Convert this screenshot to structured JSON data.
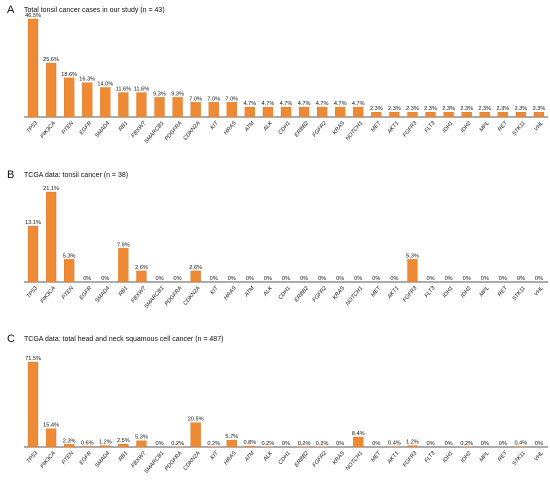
{
  "style": {
    "bar_color": "#ee8a34",
    "text_color": "#111111",
    "background": "#ffffff"
  },
  "chart_data": [
    {
      "type": "bar",
      "panel": "A",
      "title": "Total tonsil cancer cases in our study (n = 43)",
      "categories": [
        "TP53",
        "PIK3CA",
        "PTEN",
        "EGFR",
        "SMAD4",
        "RB1",
        "FBXW7",
        "SMARCB1",
        "PDGFRA",
        "CDKN2A",
        "KIT",
        "HRAS",
        "ATM",
        "ALK",
        "CDH1",
        "ERBB2",
        "FGFR2",
        "KRAS",
        "NOTCH1",
        "MET",
        "AKT1",
        "FGFR3",
        "FLT3",
        "IDH1",
        "IDH2",
        "MPL",
        "RET",
        "STK11",
        "VHL"
      ],
      "values": [
        46.5,
        25.6,
        18.6,
        16.3,
        14.0,
        11.6,
        11.6,
        9.3,
        9.3,
        7.0,
        7.0,
        7.0,
        4.7,
        4.7,
        4.7,
        4.7,
        4.7,
        4.7,
        4.7,
        2.3,
        2.3,
        2.3,
        2.3,
        2.3,
        2.3,
        2.3,
        2.3,
        2.3,
        2.3
      ],
      "value_labels": [
        "46.5%",
        "25.6%",
        "18.6%",
        "16.3%",
        "14.0%",
        "11.6%",
        "11.6%",
        "9.3%",
        "9.3%",
        "7.0%",
        "7.0%",
        "7.0%",
        "4.7%",
        "4.7%",
        "4.7%",
        "4.7%",
        "4.7%",
        "4.7%",
        "4.7%",
        "2.3%",
        "2.3%",
        "2.3%",
        "2.3%",
        "2.3%",
        "2.3%",
        "2.3%",
        "2.3%",
        "2.3%",
        "2.3%"
      ],
      "ylim": [
        0,
        46.5
      ],
      "grid": false,
      "legend": "none"
    },
    {
      "type": "bar",
      "panel": "B",
      "title": "TCGA data: tonsil cancer (n = 38)",
      "categories": [
        "TP53",
        "PIK3CA",
        "PTEN",
        "EGFR",
        "SMAD4",
        "RB1",
        "FBXW7",
        "SMARCB1",
        "PDGFRA",
        "CDKN2A",
        "KIT",
        "HRAS",
        "ATM",
        "ALK",
        "CDH1",
        "ERBB2",
        "FGFR2",
        "KRAS",
        "NOTCH1",
        "MET",
        "AKT1",
        "FGFR3",
        "FLT3",
        "IDH1",
        "IDH2",
        "MPL",
        "RET",
        "STK11",
        "VHL"
      ],
      "values": [
        13.1,
        21.1,
        5.3,
        0,
        0,
        7.9,
        2.6,
        0,
        0,
        2.6,
        0,
        0,
        0,
        0,
        0,
        0,
        0,
        0,
        0,
        0,
        0,
        5.3,
        0,
        0,
        0,
        0,
        0,
        0,
        0
      ],
      "value_labels": [
        "13.1%",
        "21.1%",
        "5.3%",
        "0%",
        "0%",
        "7.9%",
        "2.6%",
        "0%",
        "0%",
        "2.6%",
        "0%",
        "0%",
        "0%",
        "0%",
        "0%",
        "0%",
        "0%",
        "0%",
        "0%",
        "0%",
        "0%",
        "5.3%",
        "0%",
        "0%",
        "0%",
        "0%",
        "0%",
        "0%",
        "0%"
      ],
      "ylim": [
        0,
        21.1
      ],
      "grid": false,
      "legend": "none"
    },
    {
      "type": "bar",
      "panel": "C",
      "title": "TCGA data: total head and neck squamous cell cancer (n = 487)",
      "categories": [
        "TP53",
        "PIK3CA",
        "PTEN",
        "EGFR",
        "SMAD4",
        "RB1",
        "FBXW7",
        "SMARCB1",
        "PDGFRA",
        "CDKN2A",
        "KIT",
        "HRAS",
        "ATM",
        "ALK",
        "CDH1",
        "ERBB2",
        "FGFR2",
        "KRAS",
        "NOTCH1",
        "MET",
        "AKT1",
        "FGFR3",
        "FLT3",
        "IDH1",
        "IDH2",
        "MPL",
        "RET",
        "STK11",
        "VHL"
      ],
      "values": [
        71.5,
        15.4,
        2.3,
        0.6,
        1.2,
        2.5,
        5.3,
        0,
        0.2,
        20.5,
        0.2,
        5.7,
        0.8,
        0.2,
        0,
        0.2,
        0.2,
        0,
        8.4,
        0,
        0.4,
        1.2,
        0,
        0,
        0.2,
        0,
        0,
        0.4,
        0
      ],
      "value_labels": [
        "71.5%",
        "15.4%",
        "2.3%",
        "0.6%",
        "1.2%",
        "2.5%",
        "5.3%",
        "0%",
        "0.2%",
        "20.5%",
        "0.2%",
        "5.7%",
        "0.8%",
        "0.2%",
        "0%",
        "0.2%",
        "0.2%",
        "0%",
        "8.4%",
        "0%",
        "0.4%",
        "1.2%",
        "0%",
        "0%",
        "0.2%",
        "0%",
        "0%",
        "0.4%",
        "0%"
      ],
      "ylim": [
        0,
        71.5
      ],
      "grid": false,
      "legend": "none"
    }
  ]
}
